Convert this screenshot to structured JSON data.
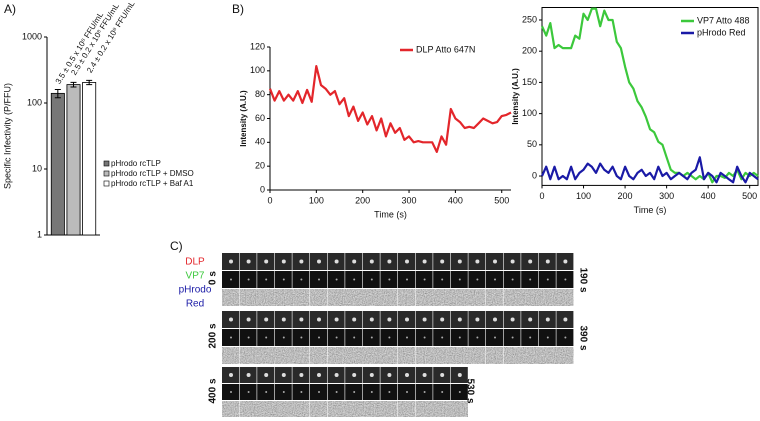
{
  "panel_labels": [
    "A)",
    "B)",
    "C)"
  ],
  "chart_data": [
    {
      "type": "bar",
      "ylabel": "Specific Infectivity (P/FFU)",
      "log_scale": true,
      "ylim": [
        1,
        1000
      ],
      "yticks": [
        1,
        10,
        100,
        1000
      ],
      "series": [
        {
          "name": "pHrodo rcTLP",
          "color": "#777777",
          "values": [
            140
          ],
          "errors": [
            20
          ]
        },
        {
          "name": "pHrodo rcTLP + DMSO",
          "color": "#bbbbbb",
          "values": [
            190
          ],
          "errors": [
            15
          ]
        },
        {
          "name": "pHrodo rcTLP + Baf A1",
          "color": "#ffffff",
          "values": [
            205
          ],
          "errors": [
            15
          ]
        }
      ],
      "annotations": [
        "3.5 ± 0.5 x 10⁸ FFU/mL",
        "2.5 ± 0.2 x 10⁸ FFU/mL",
        "2.4 ± 0.2 x 10⁸ FFU/mL"
      ],
      "legend": "right"
    },
    {
      "type": "line",
      "xlabel": "Time (s)",
      "ylabel": "Intensity (A.U.)",
      "x": [
        0,
        10,
        20,
        30,
        40,
        50,
        60,
        70,
        80,
        90,
        100,
        110,
        120,
        130,
        140,
        150,
        160,
        170,
        180,
        190,
        200,
        210,
        220,
        230,
        240,
        250,
        260,
        270,
        280,
        290,
        300,
        310,
        320,
        330,
        340,
        350,
        360,
        370,
        380,
        390,
        400,
        410,
        420,
        430,
        440,
        450,
        460,
        470,
        480,
        490,
        500,
        510,
        520
      ],
      "xlim": [
        0,
        520
      ],
      "xticks": [
        0,
        100,
        200,
        300,
        400,
        500
      ],
      "ylim": [
        0,
        120
      ],
      "yticks": [
        0,
        20,
        40,
        60,
        80,
        100,
        120
      ],
      "series": [
        {
          "name": "DLP Atto 647N",
          "color": "#e3262b",
          "values": [
            85,
            75,
            83,
            75,
            80,
            75,
            83,
            73,
            84,
            74,
            104,
            88,
            85,
            80,
            83,
            72,
            77,
            62,
            70,
            58,
            65,
            55,
            62,
            50,
            60,
            45,
            56,
            48,
            52,
            42,
            45,
            40,
            41,
            40,
            40,
            40,
            32,
            45,
            38,
            68,
            60,
            57,
            52,
            53,
            52,
            56,
            60,
            58,
            56,
            57,
            62,
            63,
            65
          ]
        }
      ],
      "legend": "upper right",
      "frame": false
    },
    {
      "type": "line",
      "xlabel": "Time (s)",
      "ylabel": "Intensity (A.U.)",
      "x": [
        0,
        10,
        20,
        30,
        40,
        50,
        60,
        70,
        80,
        90,
        100,
        110,
        120,
        130,
        140,
        150,
        160,
        170,
        180,
        190,
        200,
        210,
        220,
        230,
        240,
        250,
        260,
        270,
        280,
        290,
        300,
        310,
        320,
        330,
        340,
        350,
        360,
        370,
        380,
        390,
        400,
        410,
        420,
        430,
        440,
        450,
        460,
        470,
        480,
        490,
        500,
        510,
        520
      ],
      "xlim": [
        0,
        520
      ],
      "xticks": [
        0,
        100,
        200,
        300,
        400,
        500
      ],
      "ylim": [
        -15,
        270
      ],
      "yticks": [
        0,
        50,
        100,
        150,
        200,
        250
      ],
      "series": [
        {
          "name": "VP7 Atto 488",
          "color": "#3cc83c",
          "values": [
            240,
            225,
            245,
            205,
            210,
            205,
            205,
            205,
            225,
            220,
            260,
            250,
            268,
            268,
            240,
            265,
            250,
            250,
            215,
            205,
            175,
            150,
            140,
            120,
            110,
            95,
            75,
            70,
            55,
            50,
            30,
            10,
            5,
            5,
            0,
            5,
            0,
            -5,
            0,
            -5,
            5,
            -10,
            0,
            0,
            -3,
            5,
            0,
            10,
            -5,
            5,
            0,
            5,
            0
          ]
        },
        {
          "name": "pHrodo Red",
          "color": "#1a1aa6",
          "values": [
            0,
            15,
            -5,
            15,
            -5,
            0,
            -5,
            15,
            -5,
            5,
            10,
            20,
            15,
            5,
            20,
            10,
            5,
            15,
            0,
            -5,
            15,
            0,
            -5,
            5,
            10,
            0,
            5,
            -5,
            15,
            0,
            5,
            -5,
            0,
            5,
            0,
            -5,
            5,
            10,
            30,
            -5,
            5,
            0,
            -10,
            5,
            0,
            -5,
            -10,
            15,
            0,
            -10,
            5,
            0,
            -5
          ]
        }
      ],
      "legend": "upper right",
      "frame": true
    }
  ],
  "montage": {
    "channel_labels": [
      {
        "text": "DLP",
        "color": "#e3262b"
      },
      {
        "text": "VP7",
        "color": "#3cc83c"
      },
      {
        "text": "pHrodo",
        "color": "#1a1aa6"
      },
      {
        "text": "Red",
        "color": "#1a1aa6"
      }
    ],
    "time_labels": [
      "0 s",
      "190 s",
      "200 s",
      "390 s",
      "400 s",
      "530 s"
    ]
  }
}
